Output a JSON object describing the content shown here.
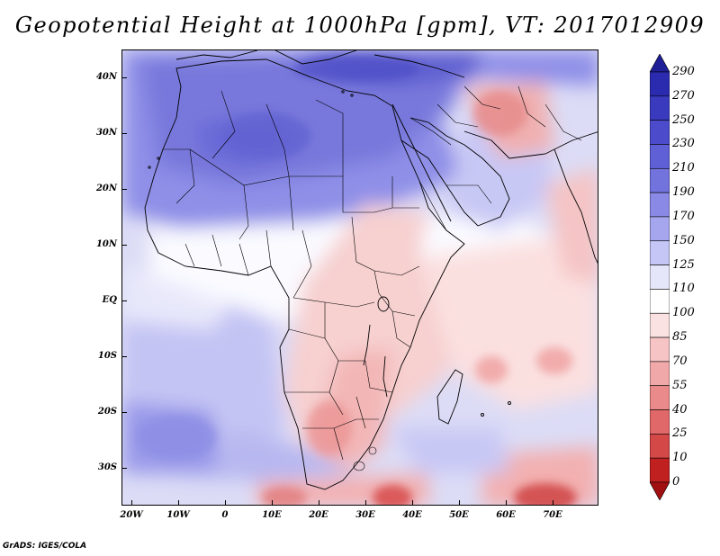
{
  "title": "Geopotential Height at 1000hPa [gpm], VT: 2017012909",
  "map": {
    "lat_labels": [
      "40N",
      "30N",
      "20N",
      "10N",
      "EQ",
      "10S",
      "20S",
      "30S"
    ],
    "lon_labels": [
      "20W",
      "10W",
      "0",
      "10E",
      "20E",
      "30E",
      "40E",
      "50E",
      "60E",
      "70E"
    ]
  },
  "colorbar": {
    "labels": [
      "290",
      "270",
      "250",
      "230",
      "210",
      "190",
      "170",
      "150",
      "125",
      "110",
      "100",
      "85",
      "70",
      "55",
      "40",
      "25",
      "10",
      "0"
    ],
    "colors": [
      "#1e1e96",
      "#2b2bb0",
      "#3a3abf",
      "#4b4bcb",
      "#5f5fd6",
      "#7373de",
      "#8a8ae6",
      "#a6a6ee",
      "#c6c6f6",
      "#e6e6fb",
      "#ffffff",
      "#fbe2e2",
      "#f6c4c4",
      "#f0a8a8",
      "#ea8a8a",
      "#e06868",
      "#d44848",
      "#c02020",
      "#a01010"
    ]
  },
  "credit": "GrADS: IGES/COLA"
}
